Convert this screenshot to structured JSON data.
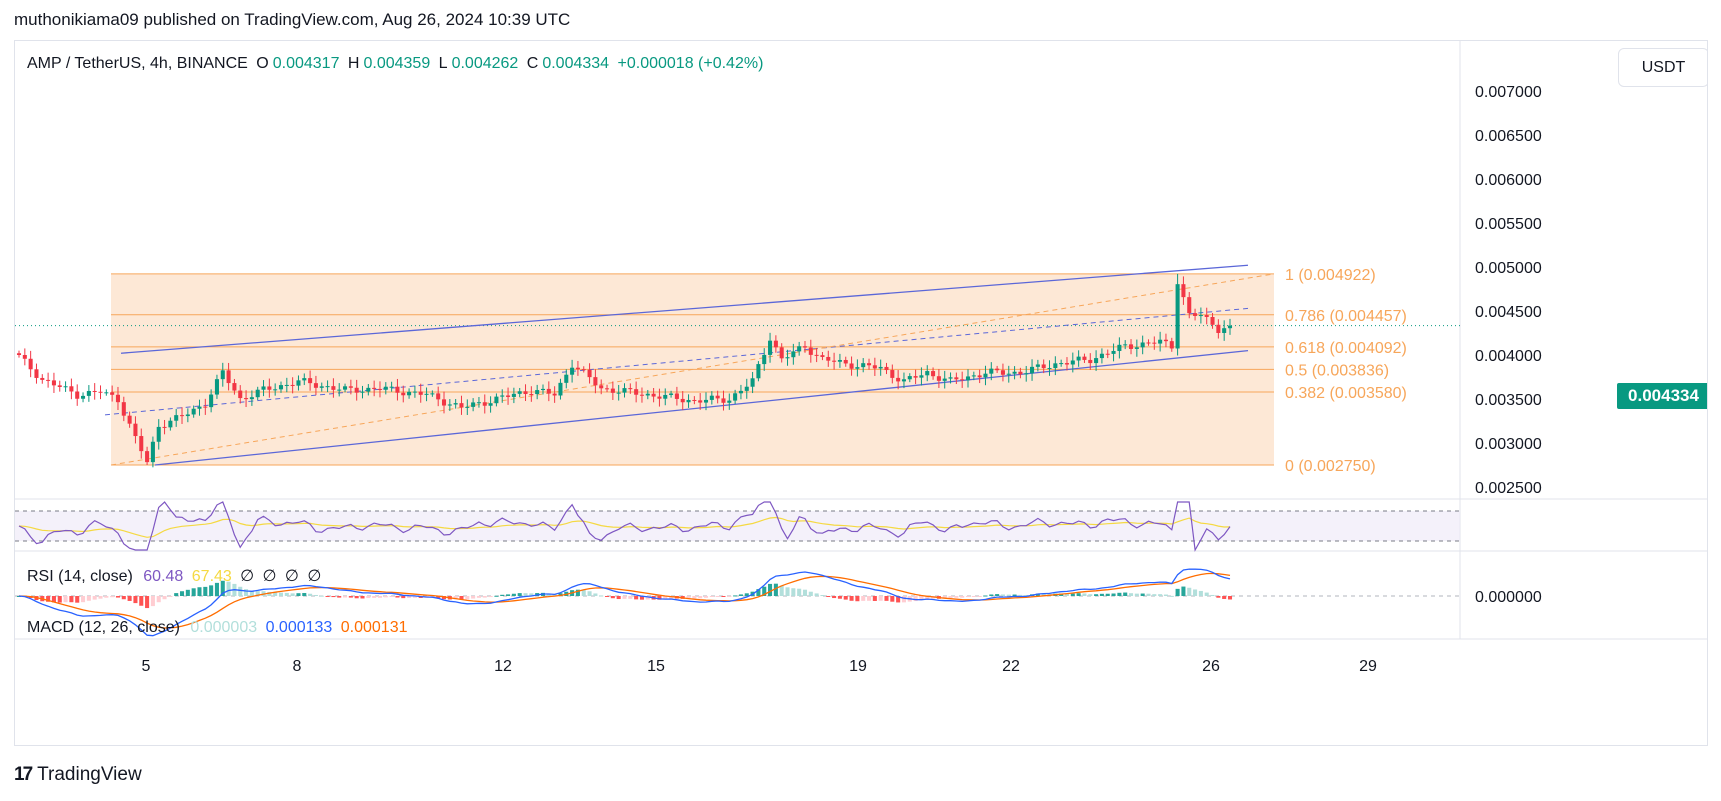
{
  "header": {
    "published_by": "muthonikiama09 published on TradingView.com, Aug 26, 2024 10:39 UTC"
  },
  "legend": {
    "symbol": "AMP / TetherUS, 4h, BINANCE",
    "open_label": "O",
    "open": "0.004317",
    "high_label": "H",
    "high": "0.004359",
    "low_label": "L",
    "low": "0.004262",
    "close_label": "C",
    "close": "0.004334",
    "change": "+0.000018 (+0.42%)"
  },
  "currency_button": "USDT",
  "last_price": "0.004334",
  "colors": {
    "up": "#089981",
    "down": "#f23645",
    "fib_fill": "#fde4cf",
    "fib_line": "#f7a65a",
    "fib_text": "#f7a65a",
    "channel": "#5b67d8",
    "rsi": "#7e57c2",
    "rsi_ma": "#f5d942",
    "macd": "#2962ff",
    "signal": "#ff6d00",
    "hist_up": "#26a69a",
    "hist_up_light": "#b2dfdb",
    "hist_down": "#ff5252",
    "hist_down_light": "#ffcdd2",
    "last_line": "#089981"
  },
  "price_axis": {
    "ticks": [
      "0.007000",
      "0.006500",
      "0.006000",
      "0.005500",
      "0.005000",
      "0.004500",
      "0.004000",
      "0.003500",
      "0.003000",
      "0.002500"
    ],
    "tick_values": [
      0.007,
      0.0065,
      0.006,
      0.0055,
      0.005,
      0.0045,
      0.004,
      0.0035,
      0.003,
      0.0025
    ]
  },
  "time_axis": {
    "ticks": [
      "5",
      "8",
      "12",
      "15",
      "19",
      "22",
      "26",
      "29"
    ]
  },
  "fibonacci": [
    {
      "level": "1",
      "price": 0.004922,
      "label": "1 (0.004922)"
    },
    {
      "level": "0.786",
      "price": 0.004457,
      "label": "0.786 (0.004457)"
    },
    {
      "level": "0.618",
      "price": 0.004092,
      "label": "0.618 (0.004092)"
    },
    {
      "level": "0.5",
      "price": 0.003836,
      "label": "0.5 (0.003836)"
    },
    {
      "level": "0.382",
      "price": 0.00358,
      "label": "0.382 (0.003580)"
    },
    {
      "level": "0",
      "price": 0.00275,
      "label": "0 (0.002750)"
    }
  ],
  "rsi": {
    "title": "RSI (14, close)",
    "value": "60.48",
    "ma": "67.43",
    "extra": [
      "∅",
      "∅",
      "∅",
      "∅"
    ]
  },
  "macd": {
    "title": "MACD (12, 26, close)",
    "histogram": "0.000003",
    "macd": "0.000133",
    "signal": "0.000131",
    "axis_tick": "0.000000"
  },
  "footer": {
    "brand": "TradingView"
  },
  "chart_data": {
    "type": "candlestick",
    "symbol": "AMP / TetherUS",
    "interval": "4h",
    "exchange": "BINANCE",
    "x_ticks": [
      "5",
      "8",
      "12",
      "15",
      "19",
      "22",
      "26",
      "29"
    ],
    "y_range": [
      0.0023,
      0.0073
    ],
    "anchors_close": [
      [
        0,
        0.00398
      ],
      [
        4,
        0.00372
      ],
      [
        10,
        0.00355
      ],
      [
        14,
        0.00358
      ],
      [
        17,
        0.0035
      ],
      [
        20,
        0.00305
      ],
      [
        22,
        0.00278
      ],
      [
        24,
        0.0032
      ],
      [
        28,
        0.0033
      ],
      [
        32,
        0.00345
      ],
      [
        35,
        0.0038
      ],
      [
        38,
        0.0035
      ],
      [
        42,
        0.0036
      ],
      [
        48,
        0.0037
      ],
      [
        56,
        0.0036
      ],
      [
        62,
        0.00362
      ],
      [
        70,
        0.00355
      ],
      [
        76,
        0.0034
      ],
      [
        82,
        0.0035
      ],
      [
        88,
        0.0036
      ],
      [
        92,
        0.00355
      ],
      [
        95,
        0.0039
      ],
      [
        100,
        0.00362
      ],
      [
        108,
        0.00355
      ],
      [
        116,
        0.00348
      ],
      [
        122,
        0.0035
      ],
      [
        126,
        0.0037
      ],
      [
        129,
        0.0042
      ],
      [
        131,
        0.00395
      ],
      [
        135,
        0.0041
      ],
      [
        138,
        0.00395
      ],
      [
        142,
        0.0039
      ],
      [
        148,
        0.00385
      ],
      [
        152,
        0.0037
      ],
      [
        156,
        0.0038
      ],
      [
        160,
        0.0037
      ],
      [
        166,
        0.0038
      ],
      [
        172,
        0.0038
      ],
      [
        178,
        0.0039
      ],
      [
        184,
        0.00395
      ],
      [
        190,
        0.0041
      ],
      [
        196,
        0.00415
      ],
      [
        198,
        0.0041
      ],
      [
        199,
        0.00485
      ],
      [
        201,
        0.00445
      ],
      [
        203,
        0.00445
      ],
      [
        206,
        0.0043
      ],
      [
        208,
        0.00433
      ]
    ],
    "fib_range": [
      0.00275,
      0.004922
    ]
  }
}
